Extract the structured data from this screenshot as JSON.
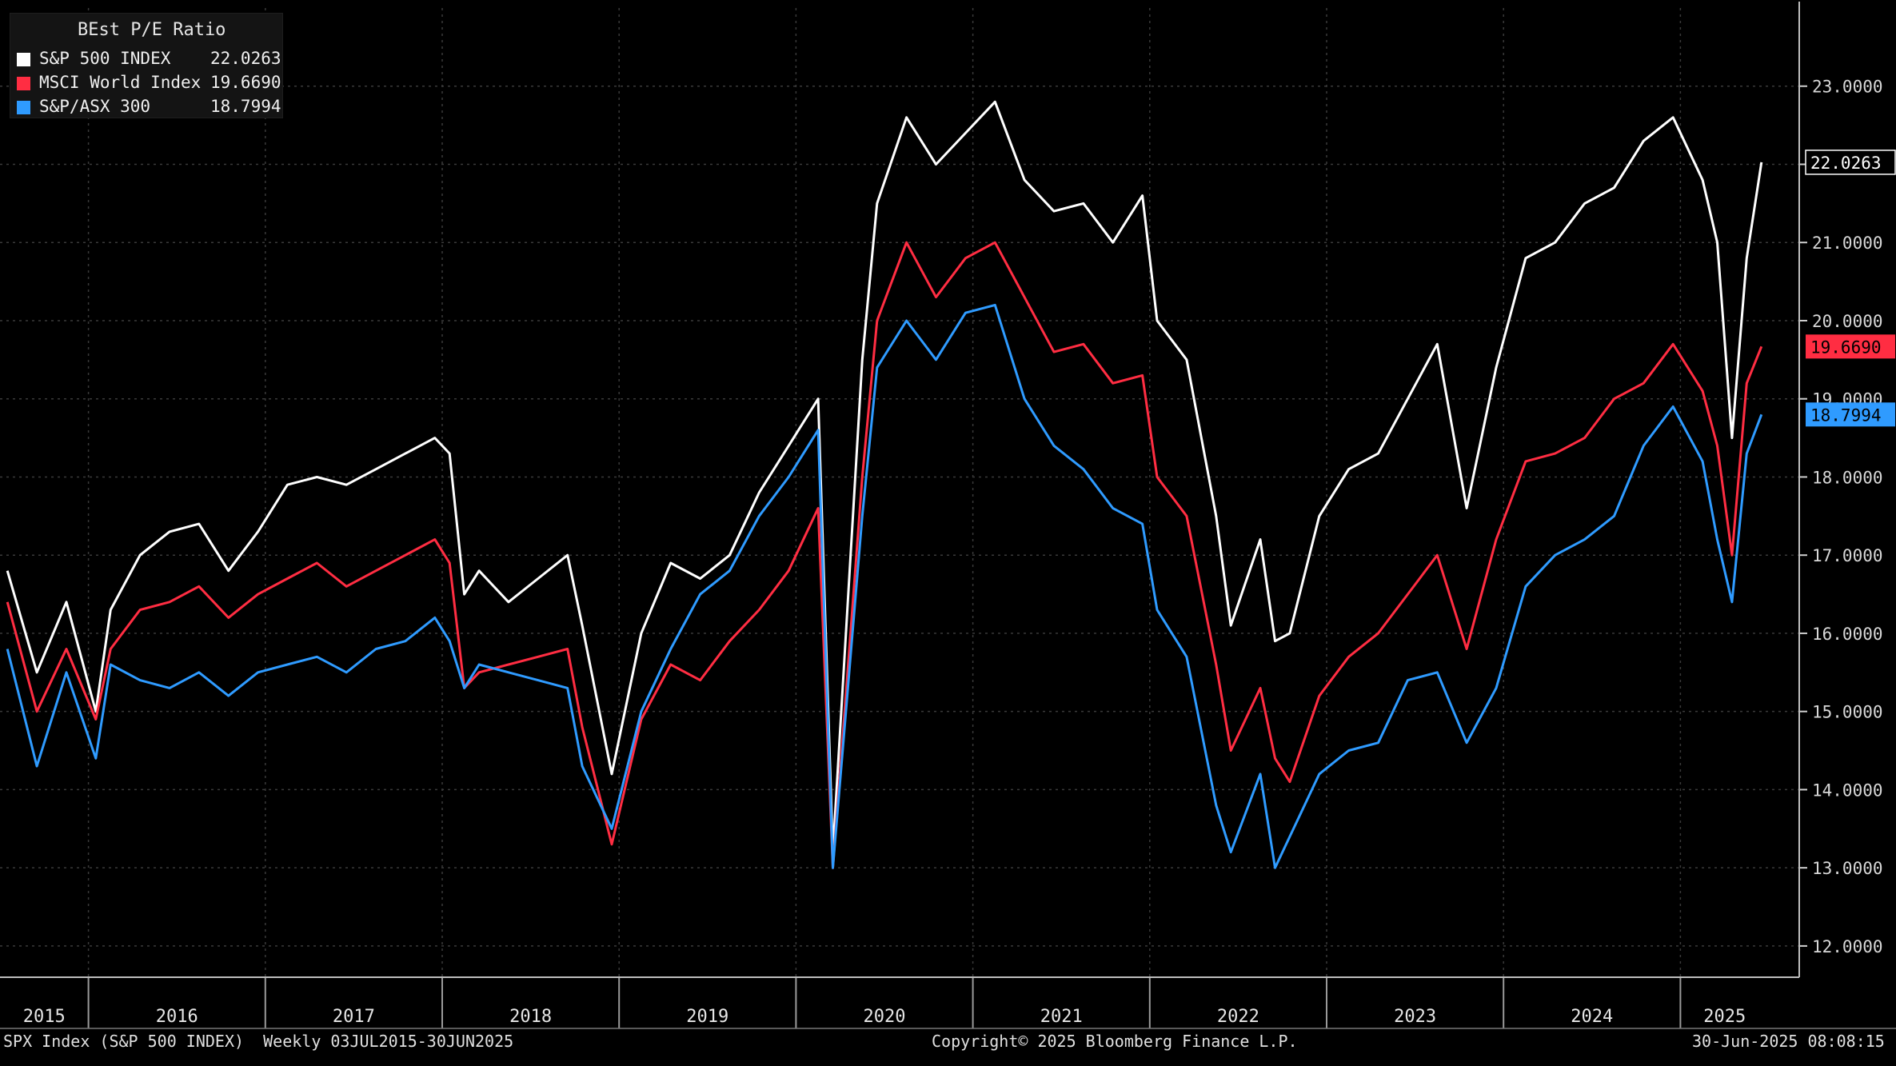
{
  "chart_data": {
    "type": "line",
    "title": "BEst P/E Ratio",
    "ylim": [
      11.6,
      24.0
    ],
    "yticks": [
      "23.0000",
      "22.0000",
      "21.0000",
      "20.0000",
      "19.0000",
      "18.0000",
      "17.0000",
      "16.0000",
      "15.0000",
      "14.0000",
      "13.0000",
      "12.0000"
    ],
    "xticks": [
      "2015",
      "2016",
      "2017",
      "2018",
      "2019",
      "2020",
      "2021",
      "2022",
      "2023",
      "2024",
      "2025"
    ],
    "grid": true,
    "legend_position": "top-left",
    "x": [
      "2015-07",
      "2015-09",
      "2015-11",
      "2016-01",
      "2016-02",
      "2016-04",
      "2016-06",
      "2016-08",
      "2016-10",
      "2016-12",
      "2017-02",
      "2017-04",
      "2017-06",
      "2017-08",
      "2017-10",
      "2017-12",
      "2018-01",
      "2018-02",
      "2018-03",
      "2018-05",
      "2018-07",
      "2018-09",
      "2018-10",
      "2018-12",
      "2019-02",
      "2019-04",
      "2019-06",
      "2019-08",
      "2019-10",
      "2019-12",
      "2020-02",
      "2020-03",
      "2020-05",
      "2020-06",
      "2020-08",
      "2020-10",
      "2020-12",
      "2021-02",
      "2021-04",
      "2021-06",
      "2021-08",
      "2021-10",
      "2021-12",
      "2022-01",
      "2022-03",
      "2022-05",
      "2022-06",
      "2022-08",
      "2022-09",
      "2022-10",
      "2022-12",
      "2023-02",
      "2023-04",
      "2023-06",
      "2023-08",
      "2023-10",
      "2023-12",
      "2024-02",
      "2024-04",
      "2024-06",
      "2024-08",
      "2024-10",
      "2024-12",
      "2025-02",
      "2025-03",
      "2025-04",
      "2025-05",
      "2025-06"
    ],
    "series": [
      {
        "name": "S&P 500 INDEX",
        "color": "#ffffff",
        "last": "22.0263",
        "values": [
          16.8,
          15.5,
          16.4,
          15.0,
          16.3,
          17.0,
          17.3,
          17.4,
          16.8,
          17.3,
          17.9,
          18.0,
          17.9,
          18.1,
          18.3,
          18.5,
          18.3,
          16.5,
          16.8,
          16.4,
          16.7,
          17.0,
          16.1,
          14.2,
          16.0,
          16.9,
          16.7,
          17.0,
          17.8,
          18.4,
          19.0,
          13.2,
          19.5,
          21.5,
          22.6,
          22.0,
          22.4,
          22.8,
          21.8,
          21.4,
          21.5,
          21.0,
          21.6,
          20.0,
          19.5,
          17.5,
          16.1,
          17.2,
          15.9,
          16.0,
          17.5,
          18.1,
          18.3,
          19.0,
          19.7,
          17.6,
          19.4,
          20.8,
          21.0,
          21.5,
          21.7,
          22.3,
          22.6,
          21.8,
          21.0,
          18.5,
          20.8,
          22.0263
        ]
      },
      {
        "name": "MSCI World Index",
        "color": "#ff2d42",
        "last": "19.6690",
        "values": [
          16.4,
          15.0,
          15.8,
          14.9,
          15.8,
          16.3,
          16.4,
          16.6,
          16.2,
          16.5,
          16.7,
          16.9,
          16.6,
          16.8,
          17.0,
          17.2,
          16.9,
          15.3,
          15.5,
          15.6,
          15.7,
          15.8,
          14.8,
          13.3,
          14.9,
          15.6,
          15.4,
          15.9,
          16.3,
          16.8,
          17.6,
          13.0,
          18.0,
          20.0,
          21.0,
          20.3,
          20.8,
          21.0,
          20.3,
          19.6,
          19.7,
          19.2,
          19.3,
          18.0,
          17.5,
          15.6,
          14.5,
          15.3,
          14.4,
          14.1,
          15.2,
          15.7,
          16.0,
          16.5,
          17.0,
          15.8,
          17.2,
          18.2,
          18.3,
          18.5,
          19.0,
          19.2,
          19.7,
          19.1,
          18.4,
          17.0,
          19.2,
          19.669
        ]
      },
      {
        "name": "S&P/ASX 300",
        "color": "#2f9bff",
        "last": "18.7994",
        "values": [
          15.8,
          14.3,
          15.5,
          14.4,
          15.6,
          15.4,
          15.3,
          15.5,
          15.2,
          15.5,
          15.6,
          15.7,
          15.5,
          15.8,
          15.9,
          16.2,
          15.9,
          15.3,
          15.6,
          15.5,
          15.4,
          15.3,
          14.3,
          13.5,
          15.0,
          15.8,
          16.5,
          16.8,
          17.5,
          18.0,
          18.6,
          13.0,
          17.5,
          19.4,
          20.0,
          19.5,
          20.1,
          20.2,
          19.0,
          18.4,
          18.1,
          17.6,
          17.4,
          16.3,
          15.7,
          13.8,
          13.2,
          14.2,
          13.0,
          13.4,
          14.2,
          14.5,
          14.6,
          15.4,
          15.5,
          14.6,
          15.3,
          16.6,
          17.0,
          17.2,
          17.5,
          18.4,
          18.9,
          18.2,
          17.2,
          16.4,
          18.3,
          18.7994
        ]
      }
    ]
  },
  "footer": {
    "left": "SPX Index (S&P 500 INDEX)  Weekly 03JUL2015-30JUN2025",
    "center": "Copyright© 2025 Bloomberg Finance L.P.",
    "right": "30-Jun-2025 08:08:15"
  }
}
